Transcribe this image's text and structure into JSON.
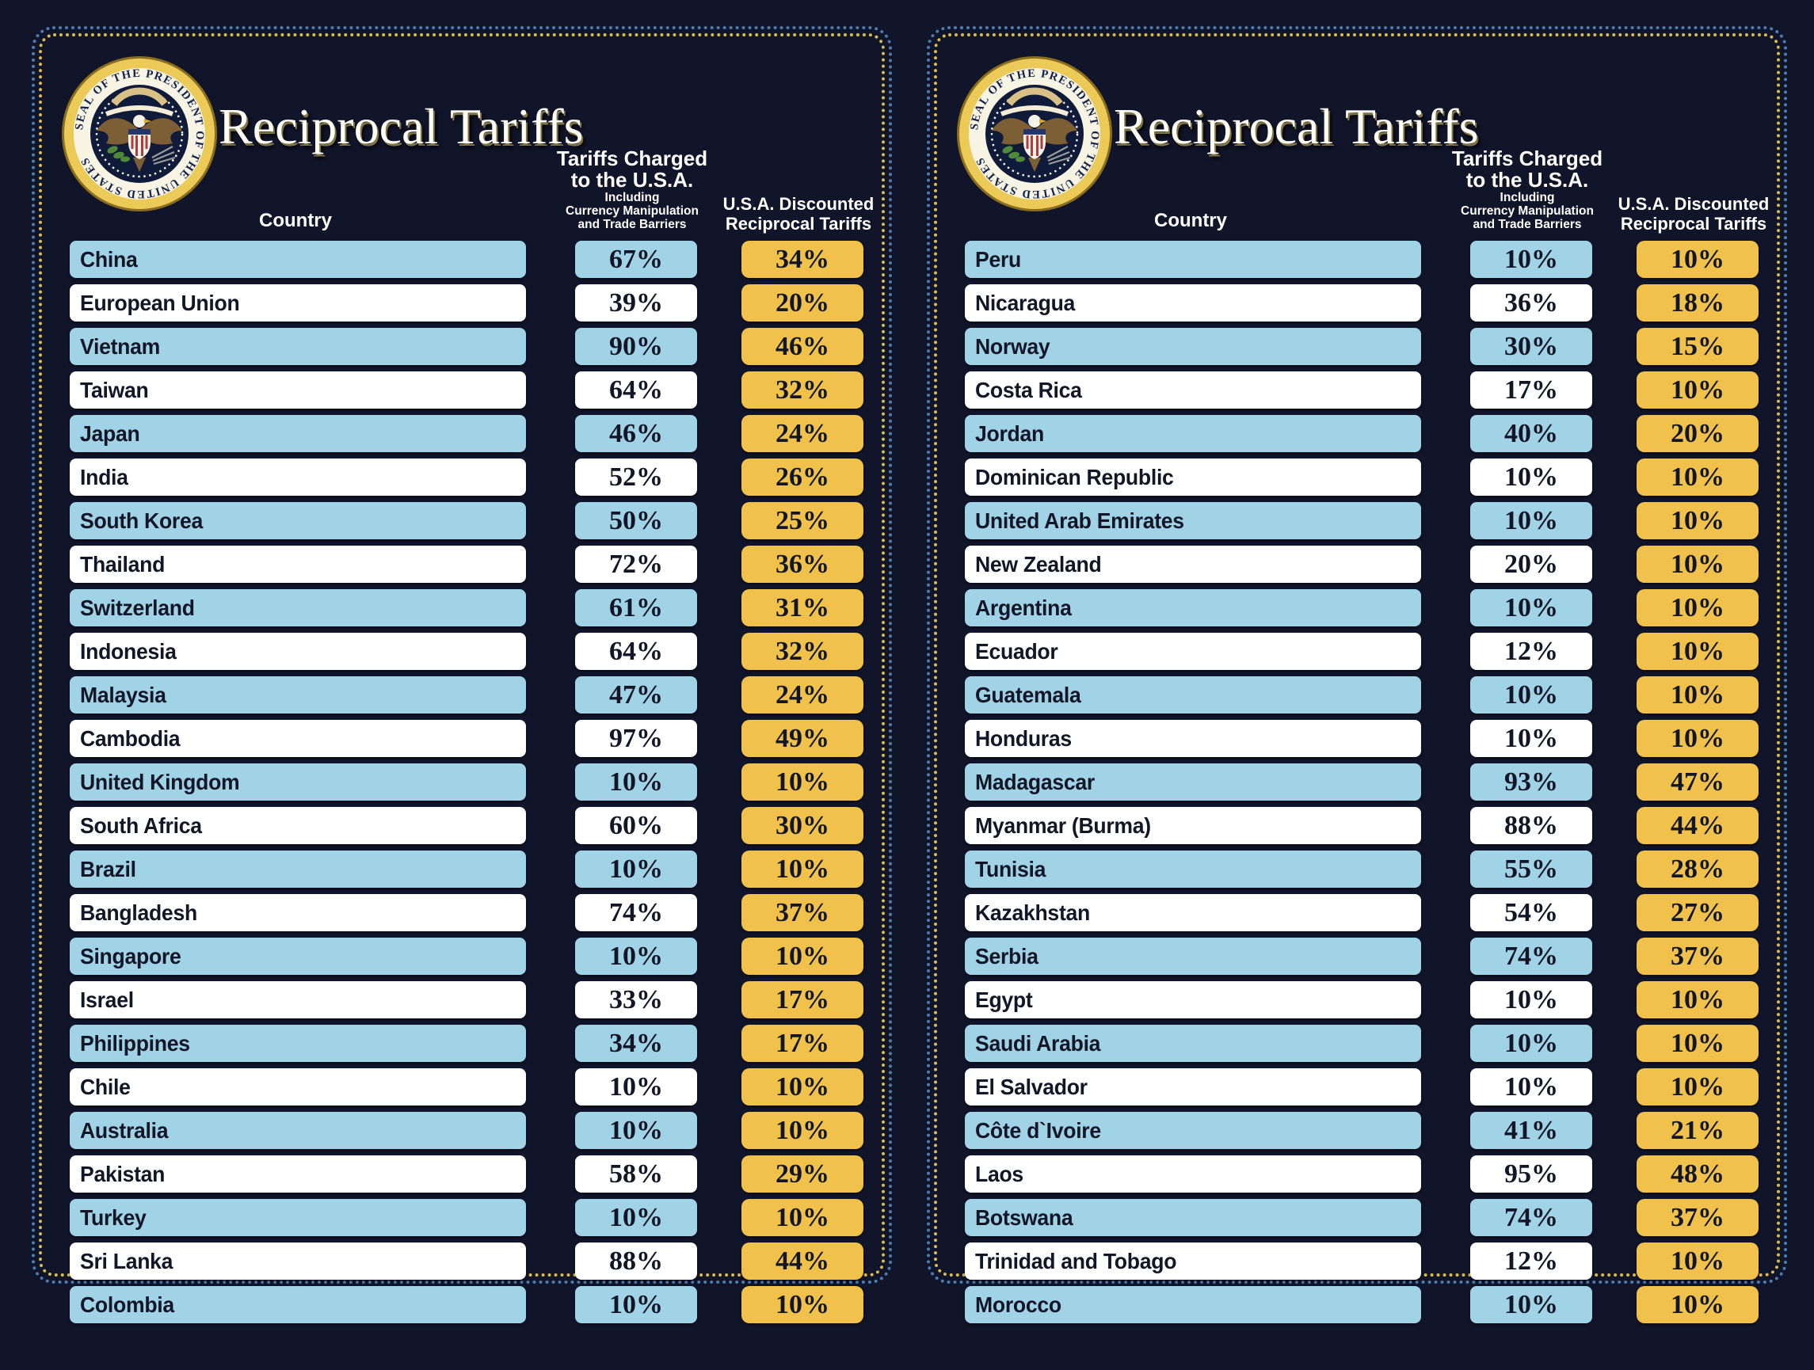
{
  "header": {
    "title": "Reciprocal Tariffs",
    "country_label": "Country",
    "charged_label_line1": "Tariffs Charged",
    "charged_label_line2": "to the U.S.A.",
    "charged_sub_line1": "Including",
    "charged_sub_line2": "Currency Manipulation",
    "charged_sub_line3": "and Trade Barriers",
    "discounted_label_line1": "U.S.A. Discounted",
    "discounted_label_line2": "Reciprocal Tariffs",
    "seal_text": "SEAL OF THE PRESIDENT OF THE UNITED STATES"
  },
  "colors": {
    "background": "#11152a",
    "row_blue": "#a0d3e5",
    "row_white": "#ffffff",
    "accent_yellow": "#f0c24b",
    "border_dot_blue": "#4b7db2",
    "border_dot_yellow": "#d9bc4f",
    "text_dark": "#121627",
    "text_light": "#ffffff",
    "seal_gold": "#ecca58"
  },
  "chart_data": {
    "type": "table",
    "title": "Reciprocal Tariffs",
    "columns": [
      "Country",
      "Tariffs Charged to the U.S.A. Including Currency Manipulation and Trade Barriers",
      "U.S.A. Discounted Reciprocal Tariffs"
    ],
    "panels": [
      {
        "rows": [
          {
            "country": "China",
            "charged": "67%",
            "discounted": "34%"
          },
          {
            "country": "European Union",
            "charged": "39%",
            "discounted": "20%"
          },
          {
            "country": "Vietnam",
            "charged": "90%",
            "discounted": "46%"
          },
          {
            "country": "Taiwan",
            "charged": "64%",
            "discounted": "32%"
          },
          {
            "country": "Japan",
            "charged": "46%",
            "discounted": "24%"
          },
          {
            "country": "India",
            "charged": "52%",
            "discounted": "26%"
          },
          {
            "country": "South Korea",
            "charged": "50%",
            "discounted": "25%"
          },
          {
            "country": "Thailand",
            "charged": "72%",
            "discounted": "36%"
          },
          {
            "country": "Switzerland",
            "charged": "61%",
            "discounted": "31%"
          },
          {
            "country": "Indonesia",
            "charged": "64%",
            "discounted": "32%"
          },
          {
            "country": "Malaysia",
            "charged": "47%",
            "discounted": "24%"
          },
          {
            "country": "Cambodia",
            "charged": "97%",
            "discounted": "49%"
          },
          {
            "country": "United Kingdom",
            "charged": "10%",
            "discounted": "10%"
          },
          {
            "country": "South Africa",
            "charged": "60%",
            "discounted": "30%"
          },
          {
            "country": "Brazil",
            "charged": "10%",
            "discounted": "10%"
          },
          {
            "country": "Bangladesh",
            "charged": "74%",
            "discounted": "37%"
          },
          {
            "country": "Singapore",
            "charged": "10%",
            "discounted": "10%"
          },
          {
            "country": "Israel",
            "charged": "33%",
            "discounted": "17%"
          },
          {
            "country": "Philippines",
            "charged": "34%",
            "discounted": "17%"
          },
          {
            "country": "Chile",
            "charged": "10%",
            "discounted": "10%"
          },
          {
            "country": "Australia",
            "charged": "10%",
            "discounted": "10%"
          },
          {
            "country": "Pakistan",
            "charged": "58%",
            "discounted": "29%"
          },
          {
            "country": "Turkey",
            "charged": "10%",
            "discounted": "10%"
          },
          {
            "country": "Sri Lanka",
            "charged": "88%",
            "discounted": "44%"
          },
          {
            "country": "Colombia",
            "charged": "10%",
            "discounted": "10%"
          }
        ]
      },
      {
        "rows": [
          {
            "country": "Peru",
            "charged": "10%",
            "discounted": "10%"
          },
          {
            "country": "Nicaragua",
            "charged": "36%",
            "discounted": "18%"
          },
          {
            "country": "Norway",
            "charged": "30%",
            "discounted": "15%"
          },
          {
            "country": "Costa Rica",
            "charged": "17%",
            "discounted": "10%"
          },
          {
            "country": "Jordan",
            "charged": "40%",
            "discounted": "20%"
          },
          {
            "country": "Dominican Republic",
            "charged": "10%",
            "discounted": "10%"
          },
          {
            "country": "United Arab Emirates",
            "charged": "10%",
            "discounted": "10%"
          },
          {
            "country": "New Zealand",
            "charged": "20%",
            "discounted": "10%"
          },
          {
            "country": "Argentina",
            "charged": "10%",
            "discounted": "10%"
          },
          {
            "country": "Ecuador",
            "charged": "12%",
            "discounted": "10%"
          },
          {
            "country": "Guatemala",
            "charged": "10%",
            "discounted": "10%"
          },
          {
            "country": "Honduras",
            "charged": "10%",
            "discounted": "10%"
          },
          {
            "country": "Madagascar",
            "charged": "93%",
            "discounted": "47%"
          },
          {
            "country": "Myanmar (Burma)",
            "charged": "88%",
            "discounted": "44%"
          },
          {
            "country": "Tunisia",
            "charged": "55%",
            "discounted": "28%"
          },
          {
            "country": "Kazakhstan",
            "charged": "54%",
            "discounted": "27%"
          },
          {
            "country": "Serbia",
            "charged": "74%",
            "discounted": "37%"
          },
          {
            "country": "Egypt",
            "charged": "10%",
            "discounted": "10%"
          },
          {
            "country": "Saudi Arabia",
            "charged": "10%",
            "discounted": "10%"
          },
          {
            "country": "El Salvador",
            "charged": "10%",
            "discounted": "10%"
          },
          {
            "country": "Côte d`Ivoire",
            "charged": "41%",
            "discounted": "21%"
          },
          {
            "country": "Laos",
            "charged": "95%",
            "discounted": "48%"
          },
          {
            "country": "Botswana",
            "charged": "74%",
            "discounted": "37%"
          },
          {
            "country": "Trinidad and Tobago",
            "charged": "12%",
            "discounted": "10%"
          },
          {
            "country": "Morocco",
            "charged": "10%",
            "discounted": "10%"
          }
        ]
      }
    ]
  }
}
